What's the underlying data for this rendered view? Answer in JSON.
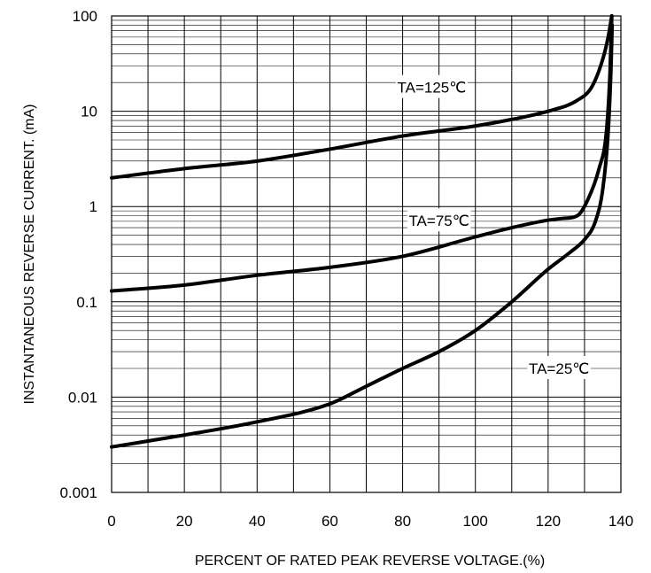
{
  "chart_data": {
    "type": "line",
    "title": "",
    "xlabel": "PERCENT OF RATED PEAK REVERSE VOLTAGE.(%)",
    "ylabel": "INSTANTANEOUS REVERSE CURRENT. (mA)",
    "x_scale": "linear",
    "y_scale": "log",
    "xlim": [
      0,
      140
    ],
    "ylim": [
      0.001,
      100
    ],
    "x_ticks": [
      0,
      20,
      40,
      60,
      80,
      100,
      120,
      140
    ],
    "x_tick_labels": [
      "0",
      "20",
      "40",
      "60",
      "80",
      "100",
      "120",
      "140"
    ],
    "y_ticks": [
      0.001,
      0.01,
      0.1,
      1,
      10,
      100
    ],
    "y_tick_labels": [
      "0.001",
      "0.01",
      "0.1",
      "1",
      "10",
      "100"
    ],
    "grid": true,
    "series": [
      {
        "name": "TA=125℃",
        "label": "TA=125℃",
        "x": [
          0,
          20,
          40,
          60,
          80,
          100,
          110,
          120,
          128,
          132,
          135,
          136.5,
          137.5
        ],
        "y": [
          2,
          2.5,
          3,
          4,
          5.5,
          7,
          8.2,
          10,
          13,
          18,
          35,
          60,
          100
        ]
      },
      {
        "name": "TA=75℃",
        "label": "TA=75℃",
        "x": [
          0,
          20,
          40,
          60,
          80,
          100,
          110,
          120,
          124,
          128,
          131,
          134,
          136,
          137,
          137.5
        ],
        "y": [
          0.13,
          0.15,
          0.19,
          0.23,
          0.3,
          0.48,
          0.6,
          0.72,
          0.75,
          0.8,
          1.2,
          2.5,
          6,
          25,
          100
        ]
      },
      {
        "name": "TA=25℃",
        "label": "TA=25℃",
        "x": [
          0,
          20,
          40,
          60,
          70,
          80,
          90,
          100,
          110,
          120,
          126,
          130,
          133,
          135,
          136.5,
          137.3,
          137.6
        ],
        "y": [
          0.003,
          0.004,
          0.0055,
          0.0085,
          0.013,
          0.02,
          0.03,
          0.05,
          0.1,
          0.22,
          0.33,
          0.45,
          0.7,
          1.5,
          6,
          30,
          80
        ]
      }
    ],
    "annotations": [
      {
        "text": "TA=125℃",
        "x": 88,
        "y": 17.8
      },
      {
        "text": "TA=75℃",
        "x": 90,
        "y": 0.71
      },
      {
        "text": "TA=25℃",
        "x": 123,
        "y": 0.02
      }
    ],
    "line_color": "#000000",
    "background": "#ffffff"
  }
}
